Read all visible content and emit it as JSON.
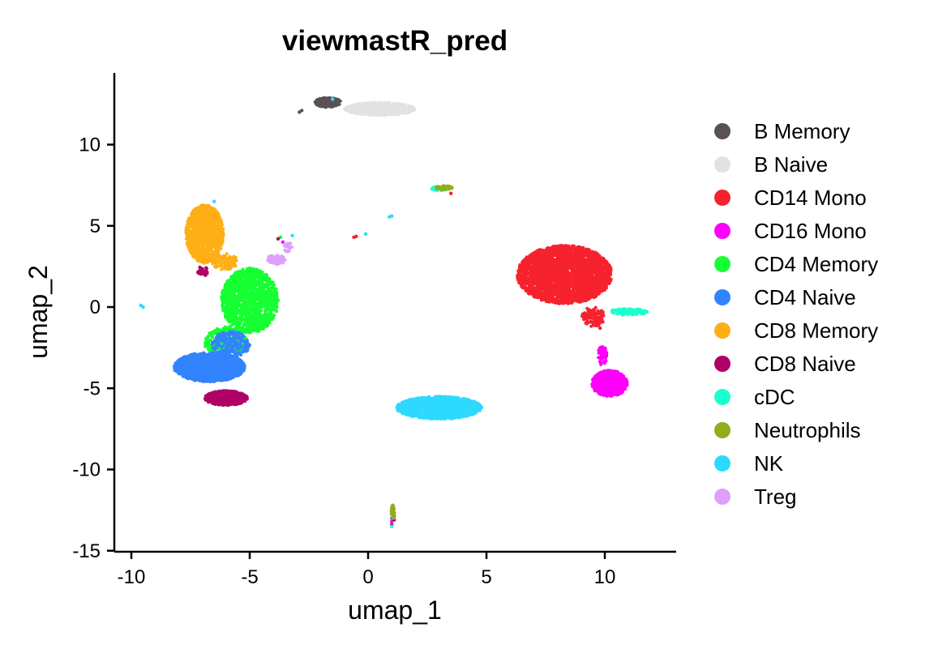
{
  "chart_data": {
    "type": "scatter",
    "title": "viewmastR_pred",
    "xlabel": "umap_1",
    "ylabel": "umap_2",
    "xlim": [
      -10.5,
      13
    ],
    "ylim": [
      -15,
      14.5
    ],
    "xticks": [
      -10,
      -5,
      0,
      5,
      10
    ],
    "yticks": [
      -15,
      -10,
      -5,
      0,
      5,
      10
    ],
    "grid": false,
    "legend_position": "right",
    "series": [
      {
        "name": "B Memory",
        "color": "#5a5156",
        "clusters": [
          {
            "cx": -1.7,
            "cy": 12.6,
            "rx": 0.55,
            "ry": 0.3,
            "n": 160
          }
        ],
        "points": [
          [
            -2.9,
            12.0
          ],
          [
            -2.8,
            12.1
          ]
        ]
      },
      {
        "name": "B Naive",
        "color": "#e4e1e3",
        "clusters": [
          {
            "cx": 0.5,
            "cy": 12.2,
            "rx": 1.5,
            "ry": 0.4,
            "n": 700
          }
        ]
      },
      {
        "name": "CD14 Mono",
        "color": "#f6222e",
        "clusters": [
          {
            "cx": 8.3,
            "cy": 2.0,
            "rx": 2.0,
            "ry": 1.8,
            "n": 2600
          },
          {
            "cx": 9.5,
            "cy": -0.6,
            "rx": 0.5,
            "ry": 0.6,
            "n": 120
          }
        ],
        "points": [
          [
            -0.5,
            4.35
          ],
          [
            -0.6,
            4.3
          ],
          [
            3.5,
            7.0
          ],
          [
            9.8,
            -1.3
          ]
        ]
      },
      {
        "name": "CD16 Mono",
        "color": "#fe00fa",
        "clusters": [
          {
            "cx": 10.2,
            "cy": -4.7,
            "rx": 0.75,
            "ry": 0.8,
            "n": 650
          },
          {
            "cx": 9.9,
            "cy": -3.0,
            "rx": 0.2,
            "ry": 0.6,
            "n": 60
          }
        ],
        "points": [
          [
            1.0,
            -13.2
          ],
          [
            1.1,
            -12.9
          ],
          [
            -3.6,
            4.0
          ]
        ]
      },
      {
        "name": "CD4 Memory",
        "color": "#16ff32",
        "clusters": [
          {
            "cx": -5.0,
            "cy": 0.4,
            "rx": 1.2,
            "ry": 2.0,
            "n": 1300
          },
          {
            "cx": -6.0,
            "cy": -2.2,
            "rx": 0.9,
            "ry": 1.0,
            "n": 300
          }
        ],
        "points": [
          [
            -3.7,
            4.3
          ]
        ]
      },
      {
        "name": "CD4 Naive",
        "color": "#3283fe",
        "clusters": [
          {
            "cx": -6.7,
            "cy": -3.7,
            "rx": 1.5,
            "ry": 0.9,
            "n": 1500
          },
          {
            "cx": -5.8,
            "cy": -2.3,
            "rx": 0.8,
            "ry": 0.8,
            "n": 200
          }
        ],
        "points": [
          [
            1.0,
            -13.0
          ]
        ]
      },
      {
        "name": "CD8 Memory",
        "color": "#feaf16",
        "clusters": [
          {
            "cx": -6.9,
            "cy": 4.5,
            "rx": 0.8,
            "ry": 1.8,
            "n": 1100
          },
          {
            "cx": -6.1,
            "cy": 2.8,
            "rx": 0.6,
            "ry": 0.5,
            "n": 120
          }
        ]
      },
      {
        "name": "CD8 Naive",
        "color": "#b00068",
        "clusters": [
          {
            "cx": -6.0,
            "cy": -5.6,
            "rx": 0.9,
            "ry": 0.45,
            "n": 600
          },
          {
            "cx": -7.0,
            "cy": 2.2,
            "rx": 0.25,
            "ry": 0.3,
            "n": 30
          }
        ],
        "points": [
          [
            1.0,
            -13.4
          ],
          [
            -3.8,
            4.2
          ],
          [
            1.1,
            -13.1
          ]
        ]
      },
      {
        "name": "cDC",
        "color": "#1cffce",
        "clusters": [
          {
            "cx": 11.0,
            "cy": -0.3,
            "rx": 0.8,
            "ry": 0.2,
            "n": 120
          },
          {
            "cx": 3.0,
            "cy": 7.3,
            "rx": 0.35,
            "ry": 0.15,
            "n": 30
          }
        ],
        "points": [
          [
            1.0,
            -13.5
          ]
        ]
      },
      {
        "name": "Neutrophils",
        "color": "#90ad1c",
        "clusters": [
          {
            "cx": 3.2,
            "cy": 7.35,
            "rx": 0.35,
            "ry": 0.12,
            "n": 50
          },
          {
            "cx": 1.05,
            "cy": -12.6,
            "rx": 0.07,
            "ry": 0.45,
            "n": 30
          }
        ]
      },
      {
        "name": "NK",
        "color": "#2ed9ff",
        "clusters": [
          {
            "cx": 3.0,
            "cy": -6.2,
            "rx": 1.8,
            "ry": 0.7,
            "n": 1700
          }
        ],
        "points": [
          [
            -9.6,
            0.1
          ],
          [
            -9.5,
            0.0
          ],
          [
            1.0,
            5.6
          ],
          [
            0.9,
            5.55
          ],
          [
            -1.5,
            12.8
          ],
          [
            -6.5,
            6.5
          ],
          [
            -3.2,
            4.4
          ],
          [
            -0.1,
            4.5
          ]
        ]
      },
      {
        "name": "Treg",
        "color": "#dea0fd",
        "clusters": [
          {
            "cx": -3.9,
            "cy": 2.9,
            "rx": 0.4,
            "ry": 0.3,
            "n": 60
          },
          {
            "cx": -3.4,
            "cy": 3.7,
            "rx": 0.2,
            "ry": 0.3,
            "n": 20
          }
        ]
      }
    ]
  }
}
